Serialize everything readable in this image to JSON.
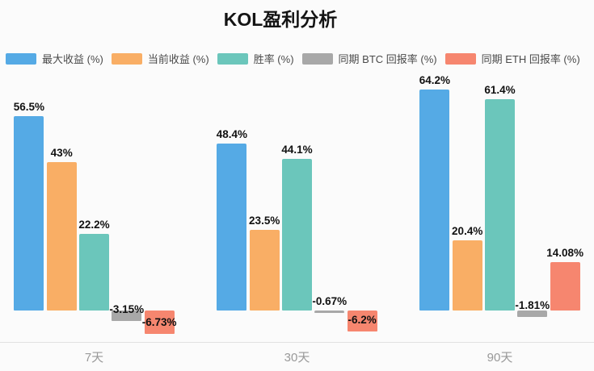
{
  "title": "KOL盈利分析",
  "colors": {
    "background": "#fbfbfb",
    "axis_line": "#e1e1e1",
    "category_text": "#999999",
    "value_label_text": "#111111",
    "legend_text": "#4a4a4a"
  },
  "chart_data": {
    "type": "bar",
    "title": "KOL盈利分析",
    "categories": [
      "7天",
      "30天",
      "90天"
    ],
    "category_keys": [
      "7d",
      "30d",
      "90d"
    ],
    "series": [
      {
        "key": "max-return",
        "name": "最大收益 (%)",
        "color": "#55aae5",
        "values": [
          56.5,
          48.4,
          64.2
        ],
        "labels": [
          "56.5%",
          "48.4%",
          "64.2%"
        ]
      },
      {
        "key": "current-return",
        "name": "当前收益 (%)",
        "color": "#f9ae65",
        "values": [
          43,
          23.5,
          20.4
        ],
        "labels": [
          "43%",
          "23.5%",
          "20.4%"
        ]
      },
      {
        "key": "win-rate",
        "name": "胜率 (%)",
        "color": "#6bc6bb",
        "values": [
          22.2,
          44.1,
          61.4
        ],
        "labels": [
          "22.2%",
          "44.1%",
          "61.4%"
        ]
      },
      {
        "key": "btc-return",
        "name": "同期 BTC 回报率 (%)",
        "color": "#a8a8a8",
        "values": [
          -3.15,
          -0.67,
          -1.81
        ],
        "labels": [
          "-3.15%",
          "-0.67%",
          "-1.81%"
        ]
      },
      {
        "key": "eth-return",
        "name": "同期 ETH 回报率 (%)",
        "color": "#f6866f",
        "values": [
          -6.73,
          -6.2,
          14.08
        ],
        "labels": [
          "-6.73%",
          "-6.2%",
          "14.08%"
        ]
      }
    ],
    "xlabel": "",
    "ylabel": "",
    "ylim": [
      -10,
      70
    ],
    "grid": false,
    "legend_position": "top",
    "value_suffix": "%"
  }
}
